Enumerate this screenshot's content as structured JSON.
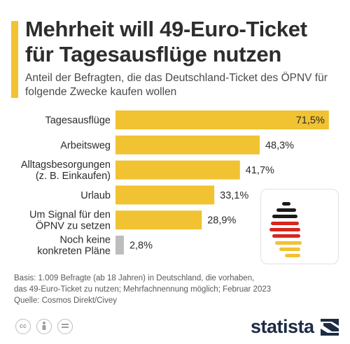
{
  "header": {
    "title": "Mehrheit will 49-Euro-Ticket für Tagesausflüge nutzen",
    "subtitle": "Anteil der Befragten, die das Deutschland-Ticket des ÖPNV für folgende Zwecke kaufen wollen"
  },
  "chart_data": {
    "type": "bar",
    "orientation": "horizontal",
    "title": "Mehrheit will 49-Euro-Ticket für Tagesausflüge nutzen",
    "subtitle": "Anteil der Befragten, die das Deutschland-Ticket des ÖPNV für folgende Zwecke kaufen wollen",
    "categories": [
      [
        "Tagesausflüge"
      ],
      [
        "Arbeitsweg"
      ],
      [
        "Alltagsbesorgungen",
        "(z. B. Einkaufen)"
      ],
      [
        "Urlaub"
      ],
      [
        "Um Signal für den",
        "ÖPNV zu setzen"
      ],
      [
        "Noch keine",
        "konkreten Pläne"
      ]
    ],
    "values": [
      71.5,
      48.3,
      41.7,
      33.1,
      28.9,
      2.8
    ],
    "value_labels": [
      "71,5%",
      "48,3%",
      "41,7%",
      "33,1%",
      "28,9%",
      "2,8%"
    ],
    "unit": "%",
    "xlim": [
      0,
      72
    ],
    "grid": false,
    "colors": {
      "bar": "#f1c232",
      "bar_muted": "#bdbdbd"
    }
  },
  "footer": {
    "source_line1": "Basis: 1.009 Befragte (ab 18 Jahren) in Deutschland, die vorhaben,",
    "source_line2": "das 49-Euro-Ticket zu nutzen; Mehrfachnennung möglich; Februar 2023",
    "source_line3": "Quelle: Cosmos Direkt/Civey",
    "license_icons": [
      "cc-icon",
      "person-icon",
      "equals-icon"
    ],
    "brand": "statista"
  },
  "colors": {
    "accent": "#f1c232",
    "flag_black": "#1a1a1a",
    "flag_red": "#d7261e",
    "flag_gold": "#f1c232",
    "brand_navy": "#1d2b45"
  }
}
